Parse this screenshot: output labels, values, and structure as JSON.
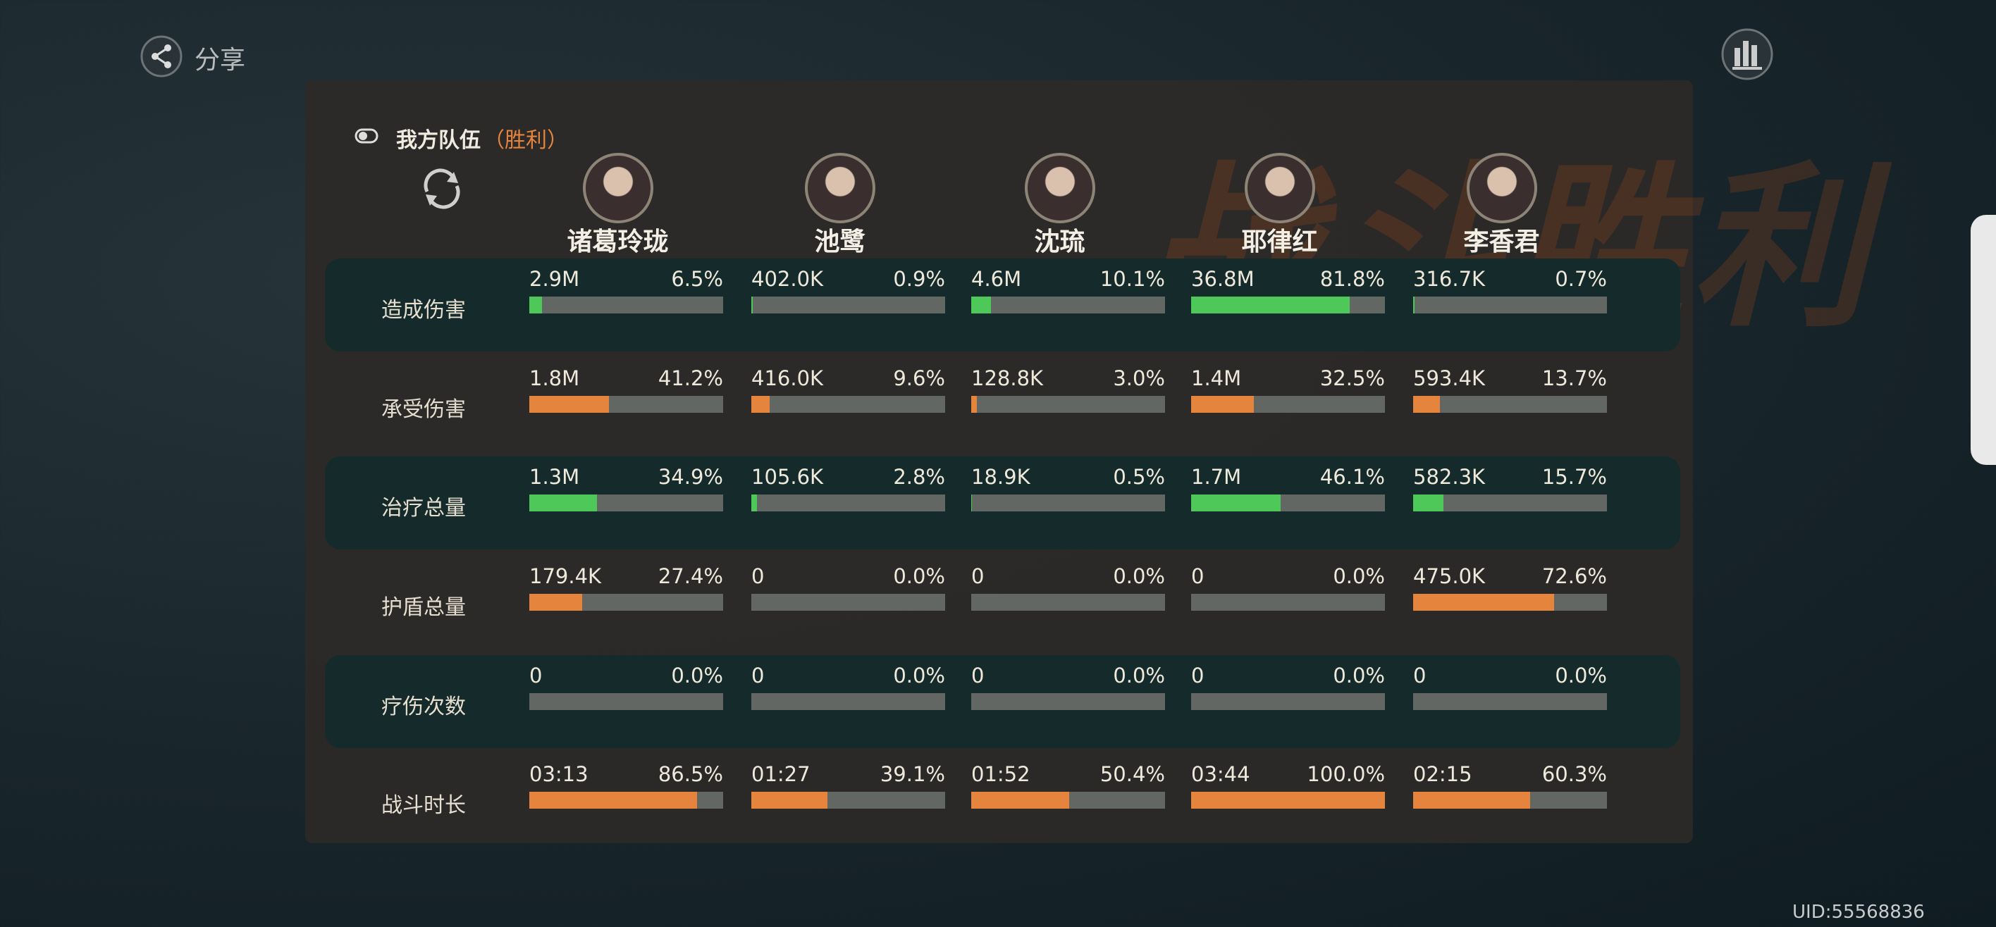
{
  "share_label": "分享",
  "banner": "战斗胜利",
  "team": {
    "title": "我方队伍",
    "result": "（胜利）"
  },
  "members": [
    "诸葛玲珑",
    "池鹭",
    "沈琉",
    "耶律红",
    "李香君"
  ],
  "metrics": [
    {
      "label": "造成伤害",
      "color": "#4fc85a",
      "cells": [
        {
          "value": "2.9M",
          "share": 6.5,
          "share_label": "6.5%"
        },
        {
          "value": "402.0K",
          "share": 0.9,
          "share_label": "0.9%"
        },
        {
          "value": "4.6M",
          "share": 10.1,
          "share_label": "10.1%"
        },
        {
          "value": "36.8M",
          "share": 81.8,
          "share_label": "81.8%"
        },
        {
          "value": "316.7K",
          "share": 0.7,
          "share_label": "0.7%"
        }
      ]
    },
    {
      "label": "承受伤害",
      "color": "#e5843d",
      "cells": [
        {
          "value": "1.8M",
          "share": 41.2,
          "share_label": "41.2%"
        },
        {
          "value": "416.0K",
          "share": 9.6,
          "share_label": "9.6%"
        },
        {
          "value": "128.8K",
          "share": 3,
          "share_label": "3.0%"
        },
        {
          "value": "1.4M",
          "share": 32.5,
          "share_label": "32.5%"
        },
        {
          "value": "593.4K",
          "share": 13.7,
          "share_label": "13.7%"
        }
      ]
    },
    {
      "label": "治疗总量",
      "color": "#4fc85a",
      "cells": [
        {
          "value": "1.3M",
          "share": 34.9,
          "share_label": "34.9%"
        },
        {
          "value": "105.6K",
          "share": 2.8,
          "share_label": "2.8%"
        },
        {
          "value": "18.9K",
          "share": 0.5,
          "share_label": "0.5%"
        },
        {
          "value": "1.7M",
          "share": 46.1,
          "share_label": "46.1%"
        },
        {
          "value": "582.3K",
          "share": 15.7,
          "share_label": "15.7%"
        }
      ]
    },
    {
      "label": "护盾总量",
      "color": "#e5843d",
      "cells": [
        {
          "value": "179.4K",
          "share": 27.4,
          "share_label": "27.4%"
        },
        {
          "value": "0",
          "share": 0,
          "share_label": "0.0%"
        },
        {
          "value": "0",
          "share": 0,
          "share_label": "0.0%"
        },
        {
          "value": "0",
          "share": 0,
          "share_label": "0.0%"
        },
        {
          "value": "475.0K",
          "share": 72.6,
          "share_label": "72.6%"
        }
      ]
    },
    {
      "label": "疗伤次数",
      "color": "#e5843d",
      "cells": [
        {
          "value": "0",
          "share": 0,
          "share_label": "0.0%"
        },
        {
          "value": "0",
          "share": 0,
          "share_label": "0.0%"
        },
        {
          "value": "0",
          "share": 0,
          "share_label": "0.0%"
        },
        {
          "value": "0",
          "share": 0,
          "share_label": "0.0%"
        },
        {
          "value": "0",
          "share": 0,
          "share_label": "0.0%"
        }
      ]
    },
    {
      "label": "战斗时长",
      "color": "#e5843d",
      "cells": [
        {
          "value": "03:13",
          "share": 86.5,
          "share_label": "86.5%"
        },
        {
          "value": "01:27",
          "share": 39.1,
          "share_label": "39.1%"
        },
        {
          "value": "01:52",
          "share": 50.4,
          "share_label": "50.4%"
        },
        {
          "value": "03:44",
          "share": 100,
          "share_label": "100.0%"
        },
        {
          "value": "02:15",
          "share": 60.3,
          "share_label": "60.3%"
        }
      ]
    }
  ],
  "uid": "UID:55568836"
}
